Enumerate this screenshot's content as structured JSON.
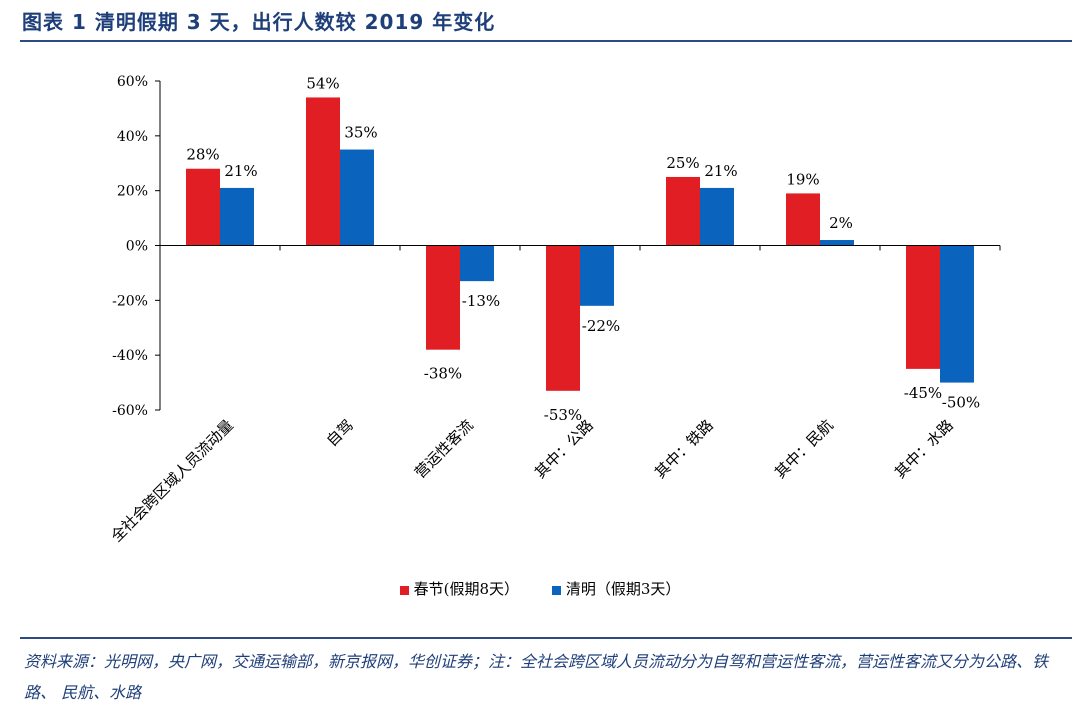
{
  "figure_title": "图表 1   清明假期 3 天，出行人数较 2019 年变化",
  "source_note": "资料来源：光明网，央广网，交通运输部，新京报网，华创证券；注：全社会跨区域人员流动分为自驾和营运性客流，营运性客流又分为公路、铁路、 民航、水路",
  "colors": {
    "series1": "#e01e23",
    "series2": "#0a63bd",
    "title": "#1f3f7a"
  },
  "chart_data": {
    "type": "bar",
    "categories": [
      "全社会跨区域人员流动量",
      "自驾",
      "营运性客流",
      "其中：公路",
      "其中：铁路",
      "其中：民航",
      "其中：水路"
    ],
    "series": [
      {
        "name": "春节(假期8天）",
        "values": [
          28,
          54,
          -38,
          -53,
          25,
          19,
          -45
        ],
        "labels": [
          "28%",
          "54%",
          "-38%",
          "-53%",
          "25%",
          "19%",
          "-45%"
        ]
      },
      {
        "name": "清明（假期3天）",
        "values": [
          21,
          35,
          -13,
          -22,
          21,
          2,
          -50
        ],
        "labels": [
          "21%",
          "35%",
          "-13%",
          "-22%",
          "21%",
          "2%",
          "-50%"
        ]
      }
    ],
    "ylim": [
      -60,
      60
    ],
    "yticks": [
      60,
      40,
      20,
      0,
      -20,
      -40,
      -60
    ],
    "ytick_labels": [
      "60%",
      "40%",
      "20%",
      "0%",
      "-20%",
      "-40%",
      "-60%"
    ],
    "legend_position": "bottom-center",
    "grid": false
  }
}
